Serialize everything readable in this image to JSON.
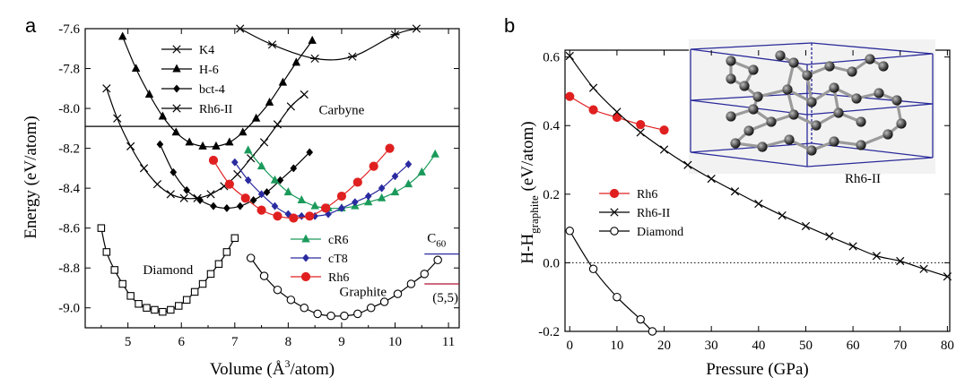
{
  "chart_data": [
    {
      "panel": "a",
      "type": "line",
      "xlabel": "Volume (Å³/atom)",
      "xlabel_main": "Volume (",
      "xlabel_unit": "Å",
      "xlabel_sup": "3",
      "xlabel_tail": "/atom)",
      "ylabel": "Energy (eV/atom)",
      "xlim": [
        4.2,
        11.2
      ],
      "ylim": [
        -9.1,
        -7.6
      ],
      "xticks": [
        5,
        6,
        7,
        8,
        9,
        10,
        11
      ],
      "yticks": [
        -9.0,
        -8.8,
        -8.6,
        -8.4,
        -8.2,
        -8.0,
        -7.8,
        -7.6
      ],
      "ytick_labels": [
        "-9.0",
        "-8.8",
        "-8.6",
        "-8.4",
        "-8.2",
        "-8.0",
        "-7.8",
        "-7.6"
      ],
      "legend_position": "top-left",
      "legend2_position": "center-right",
      "series": [
        {
          "name": "K4",
          "marker": "asterisk",
          "color": "#000000",
          "x": [
            7.1,
            7.7,
            8.5,
            9.2,
            10.0,
            10.4
          ],
          "y": [
            -7.6,
            -7.68,
            -7.75,
            -7.74,
            -7.63,
            -7.6
          ]
        },
        {
          "name": "H-6",
          "marker": "triangle",
          "color": "#000000",
          "x": [
            4.9,
            5.15,
            5.4,
            5.65,
            5.9,
            6.15,
            6.4,
            6.65,
            6.9,
            7.15,
            7.4,
            7.65,
            7.9,
            8.15,
            8.45
          ],
          "y": [
            -7.64,
            -7.8,
            -7.93,
            -8.04,
            -8.12,
            -8.17,
            -8.19,
            -8.19,
            -8.17,
            -8.12,
            -8.05,
            -7.97,
            -7.87,
            -7.77,
            -7.66
          ]
        },
        {
          "name": "bct-4",
          "marker": "diamond",
          "color": "#000000",
          "x": [
            5.6,
            5.85,
            6.1,
            6.35,
            6.6,
            6.85,
            7.1,
            7.35,
            7.6,
            7.85,
            8.1,
            8.4
          ],
          "y": [
            -8.18,
            -8.32,
            -8.41,
            -8.46,
            -8.49,
            -8.5,
            -8.49,
            -8.46,
            -8.42,
            -8.36,
            -8.3,
            -8.22
          ]
        },
        {
          "name": "Rh6-II",
          "marker": "x",
          "color": "#000000",
          "x": [
            4.6,
            4.8,
            5.05,
            5.3,
            5.55,
            5.8,
            6.05,
            6.3,
            6.55,
            6.8,
            7.05,
            7.3,
            7.55,
            7.8,
            8.05,
            8.3
          ],
          "y": [
            -7.9,
            -8.05,
            -8.19,
            -8.3,
            -8.38,
            -8.43,
            -8.45,
            -8.45,
            -8.43,
            -8.39,
            -8.33,
            -8.25,
            -8.17,
            -8.08,
            -7.99,
            -7.93
          ]
        },
        {
          "name": "cR6",
          "marker": "triangle",
          "color": "#1a9a5a",
          "x": [
            7.25,
            7.5,
            7.75,
            8.0,
            8.25,
            8.5,
            8.75,
            9.0,
            9.25,
            9.5,
            9.75,
            10.0,
            10.25,
            10.5,
            10.75
          ],
          "y": [
            -8.21,
            -8.29,
            -8.36,
            -8.42,
            -8.46,
            -8.49,
            -8.5,
            -8.5,
            -8.49,
            -8.47,
            -8.45,
            -8.42,
            -8.38,
            -8.32,
            -8.23
          ]
        },
        {
          "name": "cT8",
          "marker": "diamond",
          "color": "#2a2aa0",
          "x": [
            7.0,
            7.25,
            7.5,
            7.75,
            8.0,
            8.25,
            8.5,
            8.75,
            9.0,
            9.25,
            9.5,
            9.75,
            10.0,
            10.25
          ],
          "y": [
            -8.27,
            -8.36,
            -8.43,
            -8.49,
            -8.53,
            -8.54,
            -8.54,
            -8.53,
            -8.5,
            -8.47,
            -8.44,
            -8.4,
            -8.34,
            -8.28
          ]
        },
        {
          "name": "Rh6",
          "marker": "circle-filled",
          "color": "#e02020",
          "x": [
            6.6,
            6.9,
            7.2,
            7.5,
            7.8,
            8.1,
            8.4,
            8.7,
            9.0,
            9.3,
            9.6,
            9.9
          ],
          "y": [
            -8.26,
            -8.38,
            -8.45,
            -8.51,
            -8.54,
            -8.55,
            -8.54,
            -8.5,
            -8.44,
            -8.37,
            -8.29,
            -8.2
          ]
        },
        {
          "name": "Diamond",
          "marker": "square-open",
          "color": "#000000",
          "x": [
            4.5,
            4.6,
            4.75,
            4.9,
            5.05,
            5.2,
            5.35,
            5.5,
            5.65,
            5.8,
            5.95,
            6.1,
            6.25,
            6.4,
            6.55,
            6.7,
            6.85,
            7.0
          ],
          "y": [
            -8.6,
            -8.72,
            -8.81,
            -8.88,
            -8.94,
            -8.98,
            -9.0,
            -9.01,
            -9.02,
            -9.01,
            -8.99,
            -8.96,
            -8.92,
            -8.88,
            -8.83,
            -8.78,
            -8.72,
            -8.65
          ]
        },
        {
          "name": "Graphite",
          "marker": "circle-open",
          "color": "#000000",
          "x": [
            7.3,
            7.55,
            7.8,
            8.05,
            8.3,
            8.55,
            8.8,
            9.05,
            9.3,
            9.55,
            9.8,
            10.05,
            10.3,
            10.55,
            10.8
          ],
          "y": [
            -8.75,
            -8.84,
            -8.91,
            -8.96,
            -9.0,
            -9.03,
            -9.04,
            -9.04,
            -9.03,
            -9.0,
            -8.97,
            -8.93,
            -8.88,
            -8.83,
            -8.76
          ]
        }
      ],
      "hlines": [
        {
          "name": "Carbyne",
          "y": -8.09,
          "x0": 4.2,
          "x1": 11.2,
          "color": "#000000"
        },
        {
          "name": "C60",
          "y": -8.73,
          "x0": 10.55,
          "x1": 11.2,
          "color": "#2a2aa0"
        },
        {
          "name": "(5,5)",
          "y": -8.88,
          "x0": 10.55,
          "x1": 11.2,
          "color": "#b01030"
        }
      ],
      "annotations": {
        "carbyne": "Carbyne",
        "diamond": "Diamond",
        "graphite": "Graphite",
        "c60_main": "C",
        "c60_sub": "60",
        "tube": "(5,5)"
      },
      "legend1": [
        "K4",
        "H-6",
        "bct-4",
        "Rh6-II"
      ],
      "legend2": [
        "cR6",
        "cT8",
        "Rh6"
      ]
    },
    {
      "panel": "b",
      "type": "line",
      "xlabel": "Pressure (GPa)",
      "ylabel": "H-H_graphite (eV/atom)",
      "ylabel_main": "H-H",
      "ylabel_sub": "graphite",
      "ylabel_tail": " (eV/atom)",
      "xlim": [
        -1,
        80.5
      ],
      "ylim": [
        -0.2,
        0.62
      ],
      "xticks": [
        0,
        10,
        20,
        30,
        40,
        50,
        60,
        70,
        80
      ],
      "yticks": [
        -0.2,
        0.0,
        0.2,
        0.4,
        0.6
      ],
      "ytick_labels": [
        "-0.2",
        "0.0",
        "0.2",
        "0.4",
        "0.6"
      ],
      "legend_position": "center-left",
      "zero_line": "dotted",
      "series": [
        {
          "name": "Rh6",
          "marker": "circle-filled",
          "color": "#e02020",
          "x": [
            0,
            5,
            10,
            15,
            20
          ],
          "y": [
            0.485,
            0.446,
            0.424,
            0.403,
            0.387
          ]
        },
        {
          "name": "Rh6-II",
          "marker": "x",
          "color": "#000000",
          "x": [
            0,
            5,
            10,
            15,
            20,
            25,
            30,
            35,
            40,
            45,
            50,
            55,
            60,
            65,
            70,
            75,
            80
          ],
          "y": [
            0.603,
            0.51,
            0.44,
            0.38,
            0.33,
            0.285,
            0.245,
            0.208,
            0.172,
            0.138,
            0.107,
            0.077,
            0.048,
            0.02,
            0.005,
            -0.018,
            -0.04
          ]
        },
        {
          "name": "Diamond",
          "marker": "circle-open",
          "color": "#000000",
          "x": [
            0,
            5,
            10,
            15,
            17.5
          ],
          "y": [
            0.093,
            -0.018,
            -0.1,
            -0.165,
            -0.2
          ]
        }
      ],
      "inset_label": "Rh6-II",
      "legend": [
        "Rh6",
        "Rh6-II",
        "Diamond"
      ]
    }
  ],
  "panels": {
    "a": "a",
    "b": "b"
  }
}
